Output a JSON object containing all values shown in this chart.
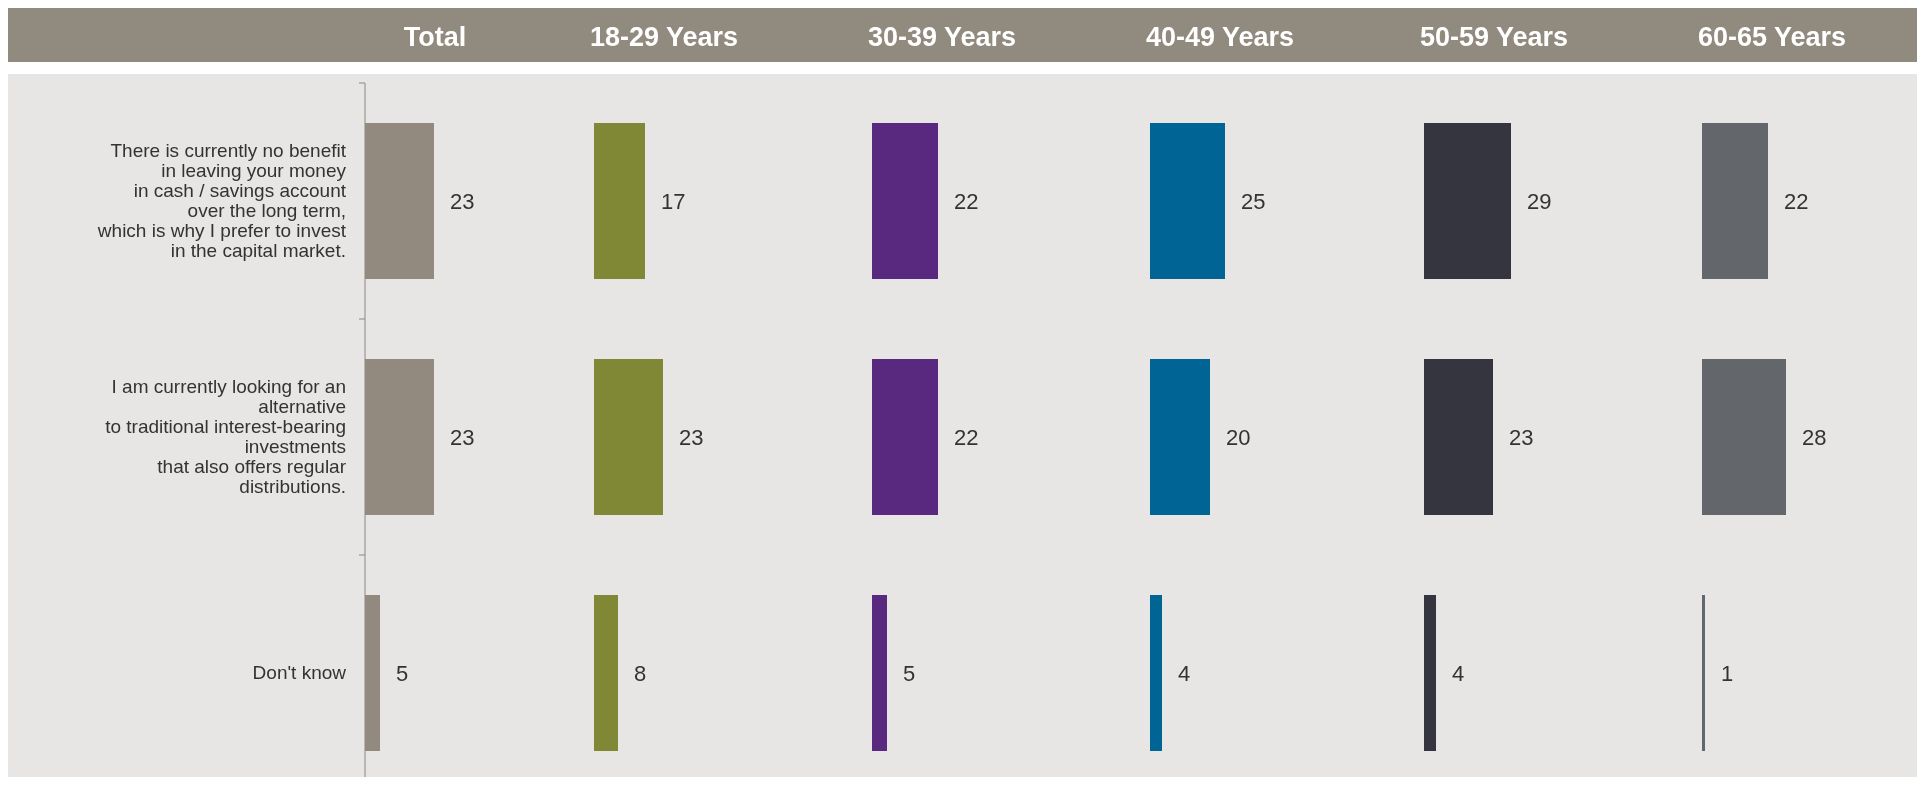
{
  "chart_data": [
    {
      "type": "bar",
      "orientation": "horizontal",
      "title": "Total",
      "categories": [
        "There is currently no benefit\nin leaving your money\nin cash / savings account\nover the long term,\nwhich is why I prefer to invest\nin the capital market.",
        "I am currently looking for an\nalternative\nto traditional interest-bearing\ninvestments\nthat also offers regular\ndistributions.",
        "Don't know"
      ],
      "values": [
        23,
        23,
        5
      ],
      "color": "#928a7e",
      "data_labels": true
    },
    {
      "type": "bar",
      "orientation": "horizontal",
      "title": "18-29 Years",
      "categories": [
        null,
        null,
        null
      ],
      "values": [
        17,
        23,
        8
      ],
      "color": "#808735",
      "data_labels": true
    },
    {
      "type": "bar",
      "orientation": "horizontal",
      "title": "30-39 Years",
      "categories": [
        null,
        null,
        null
      ],
      "values": [
        22,
        22,
        5
      ],
      "color": "#58297e",
      "data_labels": true
    },
    {
      "type": "bar",
      "orientation": "horizontal",
      "title": "40-49 Years",
      "categories": [
        null,
        null,
        null
      ],
      "values": [
        25,
        20,
        4
      ],
      "color": "#006595",
      "data_labels": true
    },
    {
      "type": "bar",
      "orientation": "horizontal",
      "title": "50-59 Years",
      "categories": [
        null,
        null,
        null
      ],
      "values": [
        29,
        23,
        4
      ],
      "color": "#35353f",
      "data_labels": true
    },
    {
      "type": "bar",
      "orientation": "horizontal",
      "title": "60-65 Years",
      "categories": [
        null,
        null,
        null
      ],
      "values": [
        22,
        28,
        1
      ],
      "color": "#63666a",
      "data_labels": true
    }
  ]
}
